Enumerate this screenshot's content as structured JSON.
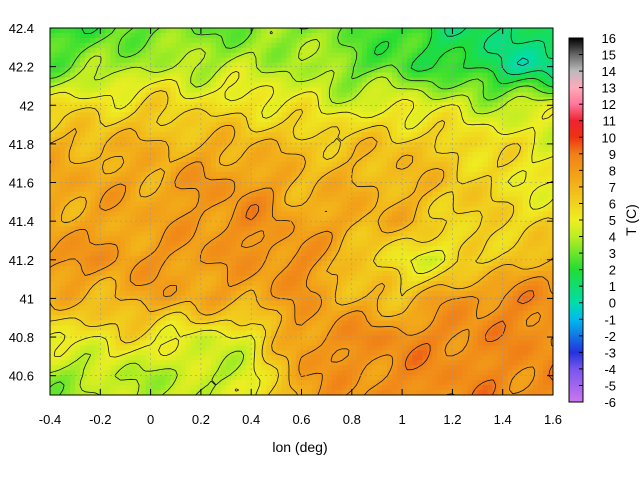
{
  "chart_data": {
    "type": "heatmap",
    "xlabel": "lon (deg)",
    "ylabel": "",
    "colorbar_label": "T (C)",
    "xlim": [
      -0.4,
      1.6
    ],
    "ylim": [
      40.5,
      42.4
    ],
    "x_ticks": [
      "-0.4",
      "-0.2",
      "0",
      "0.2",
      "0.4",
      "0.6",
      "0.8",
      "1",
      "1.2",
      "1.4",
      "1.6"
    ],
    "y_ticks": [
      "40.6",
      "40.8",
      "41",
      "41.2",
      "41.4",
      "41.6",
      "41.8",
      "42",
      "42.2",
      "42.4"
    ],
    "colorbar_range": [
      -6,
      16
    ],
    "colorbar_ticks": [
      "16",
      "15",
      "14",
      "13",
      "12",
      "11",
      "10",
      "9",
      "8",
      "7",
      "6",
      "5",
      "4",
      "3",
      "2",
      "1",
      "0",
      "-1",
      "-2",
      "-3",
      "-4",
      "-5",
      "-6"
    ],
    "colormap_stops": [
      {
        "t": -6,
        "color": "#cc77ee"
      },
      {
        "t": -4,
        "color": "#7755ee"
      },
      {
        "t": -3,
        "color": "#2233dd"
      },
      {
        "t": -1,
        "color": "#00bbee"
      },
      {
        "t": 0,
        "color": "#00ddaa"
      },
      {
        "t": 2,
        "color": "#22dd33"
      },
      {
        "t": 4,
        "color": "#bbee22"
      },
      {
        "t": 5,
        "color": "#eeee22"
      },
      {
        "t": 7,
        "color": "#f3b51a"
      },
      {
        "t": 9,
        "color": "#f07f17"
      },
      {
        "t": 10,
        "color": "#ee3311"
      },
      {
        "t": 11,
        "color": "#ee2233"
      },
      {
        "t": 12,
        "color": "#ff7799"
      },
      {
        "t": 13,
        "color": "#ffaabb"
      },
      {
        "t": 14,
        "color": "#bbbbbb"
      },
      {
        "t": 15,
        "color": "#666666"
      },
      {
        "t": 16,
        "color": "#000000"
      }
    ],
    "grid": true,
    "contour_interval": 1,
    "temperature_field": {
      "lon": [
        -0.4,
        -0.2,
        0.0,
        0.2,
        0.4,
        0.6,
        0.8,
        1.0,
        1.2,
        1.4,
        1.6
      ],
      "lat": [
        42.4,
        42.2,
        42.0,
        41.8,
        41.6,
        41.4,
        41.2,
        41.0,
        40.8,
        40.6,
        40.5
      ],
      "values": [
        [
          2.0,
          2.5,
          3.0,
          3.0,
          3.0,
          3.5,
          3.0,
          2.0,
          1.5,
          1.0,
          1.5
        ],
        [
          3.0,
          3.5,
          4.0,
          4.0,
          4.0,
          4.0,
          3.0,
          2.5,
          2.0,
          1.0,
          0.0
        ],
        [
          5.5,
          5.5,
          6.0,
          5.5,
          5.5,
          5.0,
          4.5,
          5.0,
          4.5,
          4.0,
          4.5
        ],
        [
          7.0,
          7.0,
          7.0,
          7.0,
          7.0,
          6.5,
          6.5,
          6.5,
          6.0,
          5.5,
          5.0
        ],
        [
          7.5,
          7.5,
          7.5,
          8.0,
          8.0,
          7.0,
          7.0,
          7.0,
          6.5,
          5.5,
          5.0
        ],
        [
          7.5,
          7.5,
          7.5,
          8.0,
          8.5,
          7.5,
          7.5,
          7.0,
          6.0,
          6.0,
          5.5
        ],
        [
          8.5,
          8.0,
          8.0,
          8.0,
          8.0,
          8.5,
          6.5,
          5.0,
          5.0,
          6.5,
          7.0
        ],
        [
          7.0,
          7.0,
          7.5,
          7.5,
          7.5,
          8.0,
          7.0,
          6.5,
          8.0,
          8.5,
          8.5
        ],
        [
          5.0,
          5.5,
          5.5,
          4.5,
          5.0,
          8.0,
          8.5,
          8.5,
          8.5,
          8.5,
          8.5
        ],
        [
          3.5,
          4.0,
          4.0,
          4.0,
          4.5,
          8.0,
          8.0,
          8.5,
          8.5,
          8.5,
          8.5
        ],
        [
          3.5,
          4.0,
          4.0,
          4.5,
          4.5,
          8.0,
          8.0,
          8.5,
          8.5,
          8.5,
          8.5
        ]
      ]
    }
  }
}
